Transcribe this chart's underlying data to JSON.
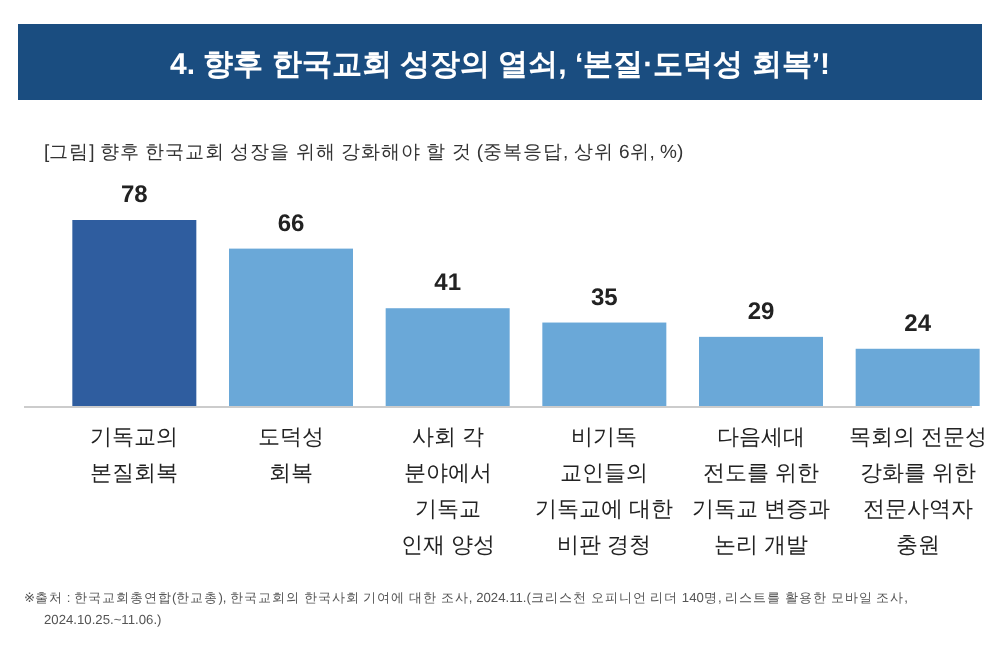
{
  "chart_data": {
    "type": "bar",
    "title": "4. 향후 한국교회 성장의 열쇠, ‘본질·도덕성 회복’!",
    "subtitle": "[그림] 향후 한국교회 성장을 위해 강화해야 할 것 (중복응답, 상위 6위, %)",
    "categories": [
      "기독교의\n본질회복",
      "도덕성\n회복",
      "사회 각\n분야에서\n기독교\n인재 양성",
      "비기독\n교인들의\n기독교에 대한\n비판 경청",
      "다음세대\n전도를 위한\n기독교 변증과\n논리 개발",
      "목회의 전문성\n강화를 위한\n전문사역자\n충원"
    ],
    "values": [
      78,
      66,
      41,
      35,
      29,
      24
    ],
    "colors": [
      "#2f5d9f",
      "#6aa8d8",
      "#6aa8d8",
      "#6aa8d8",
      "#6aa8d8",
      "#6aa8d8"
    ],
    "data_labels": true,
    "annotations": [
      "※출처 : 한국교회총연합(한교총), 한국교회의 한국사회 기여에 대한 조사, 2024.11.(크리스천 오피니언 리더 140명, 리스트를 활용한 모바일 조사,\n2024.10.25.~11.06.)"
    ]
  }
}
